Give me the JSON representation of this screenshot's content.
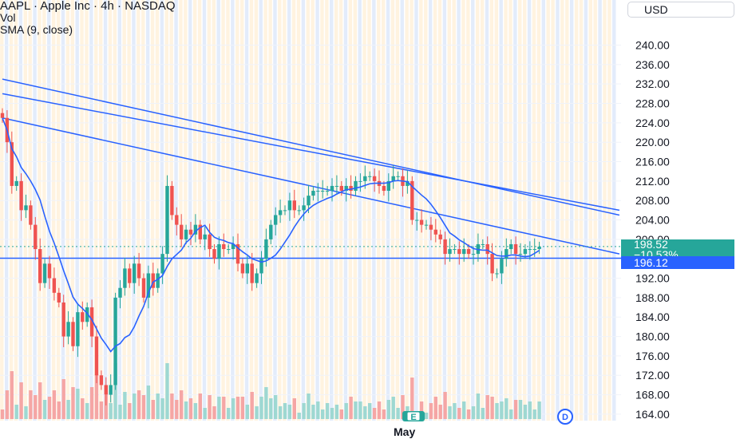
{
  "header": {
    "title": "AAPL · Apple Inc · 4h · NASDAQ",
    "indicator_vol": "Vol",
    "indicator_sma": "SMA (9, close)"
  },
  "currency": "USD",
  "last_price": {
    "value": "198.52",
    "change": "−10.53%"
  },
  "horizontal_line_label": "196.12",
  "xaxis_label": "May",
  "event_markers": [
    "E",
    "D"
  ],
  "colors": {
    "up": "#26a69a",
    "down": "#ef5350",
    "sma": "#2962ff",
    "trendline": "#2962ff",
    "session_orange": "#fff3e0",
    "session_blue": "#e3ecfb"
  },
  "chart_data": {
    "type": "candlestick",
    "title": "AAPL · Apple Inc · 4h · NASDAQ",
    "yticks": [
      164,
      168,
      172,
      176,
      180,
      184,
      188,
      192,
      196,
      200,
      204,
      208,
      212,
      216,
      220,
      224,
      228,
      232,
      236,
      240
    ],
    "ylim": [
      163,
      246
    ],
    "horizontal_line": 196.12,
    "last_price": 198.52,
    "change_pct": -10.53,
    "series": [
      {
        "name": "AAPL",
        "close": [
          225,
          220,
          211,
          212,
          206,
          207,
          203,
          198,
          191,
          195,
          192,
          189,
          187,
          180,
          183,
          178,
          185,
          183,
          186,
          180,
          172,
          170,
          168,
          170,
          188,
          190,
          194,
          191,
          195,
          192,
          188,
          193,
          190,
          193,
          197,
          211,
          205,
          203,
          200,
          202,
          201,
          203,
          200,
          201,
          198,
          196,
          199,
          198,
          198,
          199,
          195,
          193,
          195,
          191,
          193,
          196,
          200,
          203,
          205,
          206,
          206,
          208,
          206,
          206,
          207,
          209,
          210,
          210,
          210,
          210,
          211,
          211,
          210,
          211,
          210,
          212,
          212,
          213,
          213,
          212,
          211,
          210,
          212,
          213,
          213,
          211,
          212,
          204,
          204,
          203,
          203,
          202,
          201,
          200,
          197,
          198,
          198,
          197,
          198,
          197,
          197,
          199,
          199,
          197,
          193,
          193,
          196,
          198,
          199,
          197,
          197,
          198,
          198,
          198,
          198.5
        ]
      },
      {
        "name": "Vol"
      },
      {
        "name": "SMA (9, close)"
      }
    ],
    "trendlines": [
      {
        "from": [
          0,
          233
        ],
        "to": [
          131,
          205
        ]
      },
      {
        "from": [
          0,
          230
        ],
        "to": [
          131,
          206
        ]
      },
      {
        "from": [
          0,
          225
        ],
        "to": [
          131,
          197
        ]
      }
    ]
  }
}
